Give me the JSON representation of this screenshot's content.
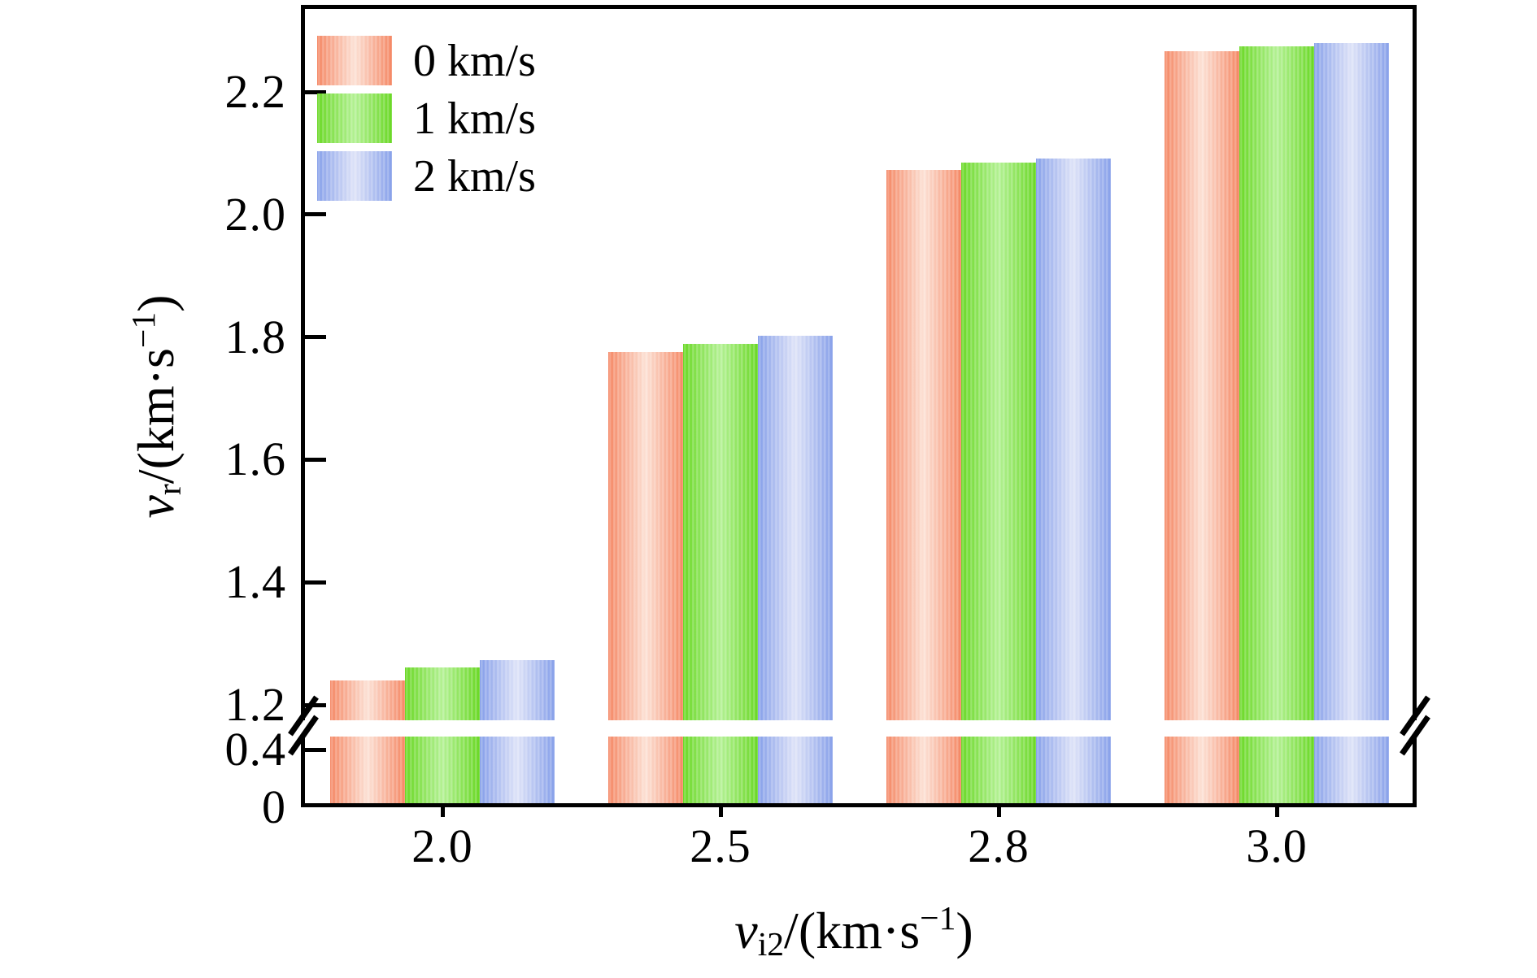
{
  "chart_data": {
    "type": "bar",
    "title": "",
    "categories": [
      "2.0",
      "2.5",
      "2.8",
      "3.0"
    ],
    "series": [
      {
        "name": "0 km/s",
        "values": [
          1.24,
          1.776,
          2.073,
          2.266
        ],
        "edge_color": "#f47e58",
        "center_color": "#fcded1"
      },
      {
        "name": "1 km/s",
        "values": [
          1.261,
          1.789,
          2.085,
          2.274
        ],
        "edge_color": "#5ed514",
        "center_color": "#aef08c"
      },
      {
        "name": "2 km/s",
        "values": [
          1.273,
          1.802,
          2.091,
          2.28
        ],
        "edge_color": "#7e99e8",
        "center_color": "#dbe0f7"
      }
    ],
    "xlabel": "v_i2/(km·s^−1)",
    "ylabel": "v_r/(km·s^−1)",
    "xlabel_parts": {
      "variable": "v",
      "subscript": "i2",
      "unit_open": "/(km·s",
      "exponent": "−1",
      "unit_close": ")"
    },
    "ylabel_parts": {
      "variable": "v",
      "subscript": "r",
      "unit_open": "/(km·s",
      "exponent": "−1",
      "unit_close": ")"
    },
    "y_axis": {
      "broken": true,
      "upper_tick_labels": [
        "2.2",
        "2.0",
        "1.8",
        "1.6",
        "1.4",
        "1.2"
      ],
      "upper_tick_values": [
        2.2,
        2.0,
        1.8,
        1.6,
        1.4,
        1.2
      ],
      "lower_tick_labels": [
        "0.4",
        "0"
      ],
      "lower_tick_values": [
        0.4,
        0
      ],
      "upper_range": [
        1.2,
        2.32
      ],
      "lower_range": [
        0,
        0.55
      ],
      "break_between": [
        0.4,
        1.2
      ]
    },
    "legend": {
      "labels": [
        "0 km/s",
        "1 km/s",
        "2 km/s"
      ],
      "position": "top-left"
    },
    "grid": false,
    "axis_color": "#000000",
    "background_color": "#ffffff"
  }
}
